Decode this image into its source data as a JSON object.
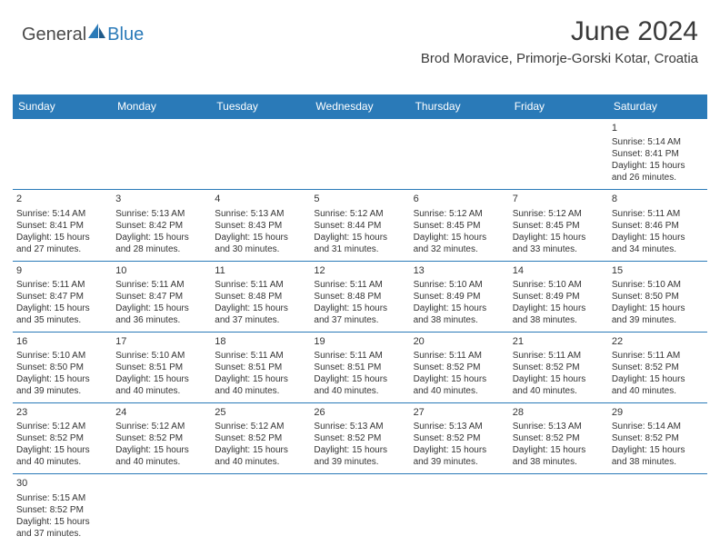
{
  "logo": {
    "text_general": "General",
    "text_blue": "Blue"
  },
  "header": {
    "month_title": "June 2024",
    "location": "Brod Moravice, Primorje-Gorski Kotar, Croatia"
  },
  "colors": {
    "header_bg": "#2a7ab8",
    "header_text": "#ffffff",
    "cell_border": "#2a7ab8",
    "body_text": "#333333"
  },
  "day_headers": [
    "Sunday",
    "Monday",
    "Tuesday",
    "Wednesday",
    "Thursday",
    "Friday",
    "Saturday"
  ],
  "weeks": [
    [
      null,
      null,
      null,
      null,
      null,
      null,
      {
        "n": "1",
        "sr": "Sunrise: 5:14 AM",
        "ss": "Sunset: 8:41 PM",
        "d1": "Daylight: 15 hours",
        "d2": "and 26 minutes."
      }
    ],
    [
      {
        "n": "2",
        "sr": "Sunrise: 5:14 AM",
        "ss": "Sunset: 8:41 PM",
        "d1": "Daylight: 15 hours",
        "d2": "and 27 minutes."
      },
      {
        "n": "3",
        "sr": "Sunrise: 5:13 AM",
        "ss": "Sunset: 8:42 PM",
        "d1": "Daylight: 15 hours",
        "d2": "and 28 minutes."
      },
      {
        "n": "4",
        "sr": "Sunrise: 5:13 AM",
        "ss": "Sunset: 8:43 PM",
        "d1": "Daylight: 15 hours",
        "d2": "and 30 minutes."
      },
      {
        "n": "5",
        "sr": "Sunrise: 5:12 AM",
        "ss": "Sunset: 8:44 PM",
        "d1": "Daylight: 15 hours",
        "d2": "and 31 minutes."
      },
      {
        "n": "6",
        "sr": "Sunrise: 5:12 AM",
        "ss": "Sunset: 8:45 PM",
        "d1": "Daylight: 15 hours",
        "d2": "and 32 minutes."
      },
      {
        "n": "7",
        "sr": "Sunrise: 5:12 AM",
        "ss": "Sunset: 8:45 PM",
        "d1": "Daylight: 15 hours",
        "d2": "and 33 minutes."
      },
      {
        "n": "8",
        "sr": "Sunrise: 5:11 AM",
        "ss": "Sunset: 8:46 PM",
        "d1": "Daylight: 15 hours",
        "d2": "and 34 minutes."
      }
    ],
    [
      {
        "n": "9",
        "sr": "Sunrise: 5:11 AM",
        "ss": "Sunset: 8:47 PM",
        "d1": "Daylight: 15 hours",
        "d2": "and 35 minutes."
      },
      {
        "n": "10",
        "sr": "Sunrise: 5:11 AM",
        "ss": "Sunset: 8:47 PM",
        "d1": "Daylight: 15 hours",
        "d2": "and 36 minutes."
      },
      {
        "n": "11",
        "sr": "Sunrise: 5:11 AM",
        "ss": "Sunset: 8:48 PM",
        "d1": "Daylight: 15 hours",
        "d2": "and 37 minutes."
      },
      {
        "n": "12",
        "sr": "Sunrise: 5:11 AM",
        "ss": "Sunset: 8:48 PM",
        "d1": "Daylight: 15 hours",
        "d2": "and 37 minutes."
      },
      {
        "n": "13",
        "sr": "Sunrise: 5:10 AM",
        "ss": "Sunset: 8:49 PM",
        "d1": "Daylight: 15 hours",
        "d2": "and 38 minutes."
      },
      {
        "n": "14",
        "sr": "Sunrise: 5:10 AM",
        "ss": "Sunset: 8:49 PM",
        "d1": "Daylight: 15 hours",
        "d2": "and 38 minutes."
      },
      {
        "n": "15",
        "sr": "Sunrise: 5:10 AM",
        "ss": "Sunset: 8:50 PM",
        "d1": "Daylight: 15 hours",
        "d2": "and 39 minutes."
      }
    ],
    [
      {
        "n": "16",
        "sr": "Sunrise: 5:10 AM",
        "ss": "Sunset: 8:50 PM",
        "d1": "Daylight: 15 hours",
        "d2": "and 39 minutes."
      },
      {
        "n": "17",
        "sr": "Sunrise: 5:10 AM",
        "ss": "Sunset: 8:51 PM",
        "d1": "Daylight: 15 hours",
        "d2": "and 40 minutes."
      },
      {
        "n": "18",
        "sr": "Sunrise: 5:11 AM",
        "ss": "Sunset: 8:51 PM",
        "d1": "Daylight: 15 hours",
        "d2": "and 40 minutes."
      },
      {
        "n": "19",
        "sr": "Sunrise: 5:11 AM",
        "ss": "Sunset: 8:51 PM",
        "d1": "Daylight: 15 hours",
        "d2": "and 40 minutes."
      },
      {
        "n": "20",
        "sr": "Sunrise: 5:11 AM",
        "ss": "Sunset: 8:52 PM",
        "d1": "Daylight: 15 hours",
        "d2": "and 40 minutes."
      },
      {
        "n": "21",
        "sr": "Sunrise: 5:11 AM",
        "ss": "Sunset: 8:52 PM",
        "d1": "Daylight: 15 hours",
        "d2": "and 40 minutes."
      },
      {
        "n": "22",
        "sr": "Sunrise: 5:11 AM",
        "ss": "Sunset: 8:52 PM",
        "d1": "Daylight: 15 hours",
        "d2": "and 40 minutes."
      }
    ],
    [
      {
        "n": "23",
        "sr": "Sunrise: 5:12 AM",
        "ss": "Sunset: 8:52 PM",
        "d1": "Daylight: 15 hours",
        "d2": "and 40 minutes."
      },
      {
        "n": "24",
        "sr": "Sunrise: 5:12 AM",
        "ss": "Sunset: 8:52 PM",
        "d1": "Daylight: 15 hours",
        "d2": "and 40 minutes."
      },
      {
        "n": "25",
        "sr": "Sunrise: 5:12 AM",
        "ss": "Sunset: 8:52 PM",
        "d1": "Daylight: 15 hours",
        "d2": "and 40 minutes."
      },
      {
        "n": "26",
        "sr": "Sunrise: 5:13 AM",
        "ss": "Sunset: 8:52 PM",
        "d1": "Daylight: 15 hours",
        "d2": "and 39 minutes."
      },
      {
        "n": "27",
        "sr": "Sunrise: 5:13 AM",
        "ss": "Sunset: 8:52 PM",
        "d1": "Daylight: 15 hours",
        "d2": "and 39 minutes."
      },
      {
        "n": "28",
        "sr": "Sunrise: 5:13 AM",
        "ss": "Sunset: 8:52 PM",
        "d1": "Daylight: 15 hours",
        "d2": "and 38 minutes."
      },
      {
        "n": "29",
        "sr": "Sunrise: 5:14 AM",
        "ss": "Sunset: 8:52 PM",
        "d1": "Daylight: 15 hours",
        "d2": "and 38 minutes."
      }
    ],
    [
      {
        "n": "30",
        "sr": "Sunrise: 5:15 AM",
        "ss": "Sunset: 8:52 PM",
        "d1": "Daylight: 15 hours",
        "d2": "and 37 minutes."
      },
      null,
      null,
      null,
      null,
      null,
      null
    ]
  ]
}
